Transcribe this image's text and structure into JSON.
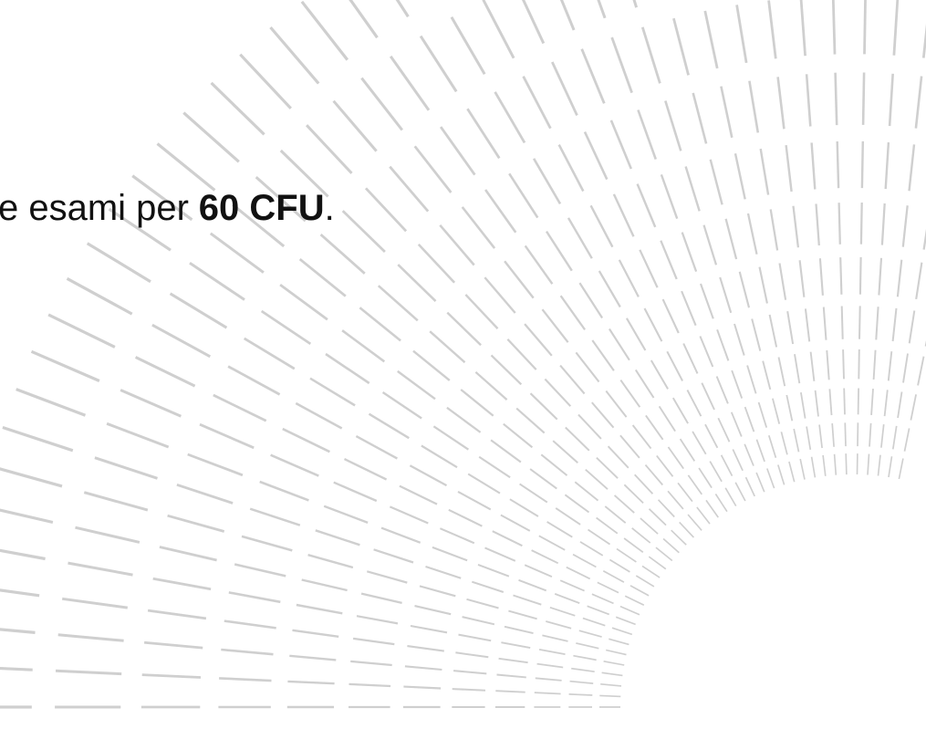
{
  "text": {
    "parts": [
      "e esami per",
      "60 CFU",
      "."
    ]
  }
}
